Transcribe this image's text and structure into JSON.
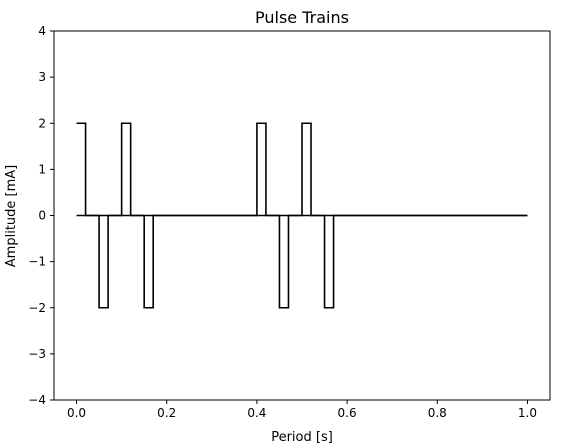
{
  "chart_data": {
    "type": "line",
    "title": "Pulse Trains",
    "xlabel": "Period [s]",
    "ylabel": "Amplitude [mA]",
    "xlim": [
      -0.05,
      1.05
    ],
    "ylim": [
      -4,
      4
    ],
    "x_ticks": [
      0.0,
      0.2,
      0.4,
      0.6,
      0.8,
      1.0
    ],
    "x_tick_labels": [
      "0.0",
      "0.2",
      "0.4",
      "0.6",
      "0.8",
      "1.0"
    ],
    "y_ticks": [
      -4,
      -3,
      -2,
      -1,
      0,
      1,
      2,
      3,
      4
    ],
    "y_tick_labels": [
      "−4",
      "−3",
      "−2",
      "−1",
      "0",
      "1",
      "2",
      "3",
      "4"
    ],
    "grid": false,
    "legend": "none",
    "series": [
      {
        "color": "#000000",
        "x": [
          0.0,
          0.0,
          0.02,
          0.02,
          0.05,
          0.05,
          0.07,
          0.07,
          0.1,
          0.1,
          0.12,
          0.12,
          0.15,
          0.15,
          0.17,
          0.17,
          0.4,
          0.4,
          0.42,
          0.42,
          0.45,
          0.45,
          0.47,
          0.47,
          0.5,
          0.5,
          0.52,
          0.52,
          0.55,
          0.55,
          0.57,
          0.57,
          1.0
        ],
        "y": [
          2,
          2,
          2,
          0,
          0,
          -2,
          -2,
          0,
          0,
          2,
          2,
          0,
          0,
          -2,
          -2,
          0,
          0,
          2,
          2,
          0,
          0,
          -2,
          -2,
          0,
          0,
          2,
          2,
          0,
          0,
          -2,
          -2,
          0,
          0
        ]
      },
      {
        "color": "#000000",
        "x": [
          0.0,
          1.0
        ],
        "y": [
          0,
          0
        ]
      }
    ]
  }
}
